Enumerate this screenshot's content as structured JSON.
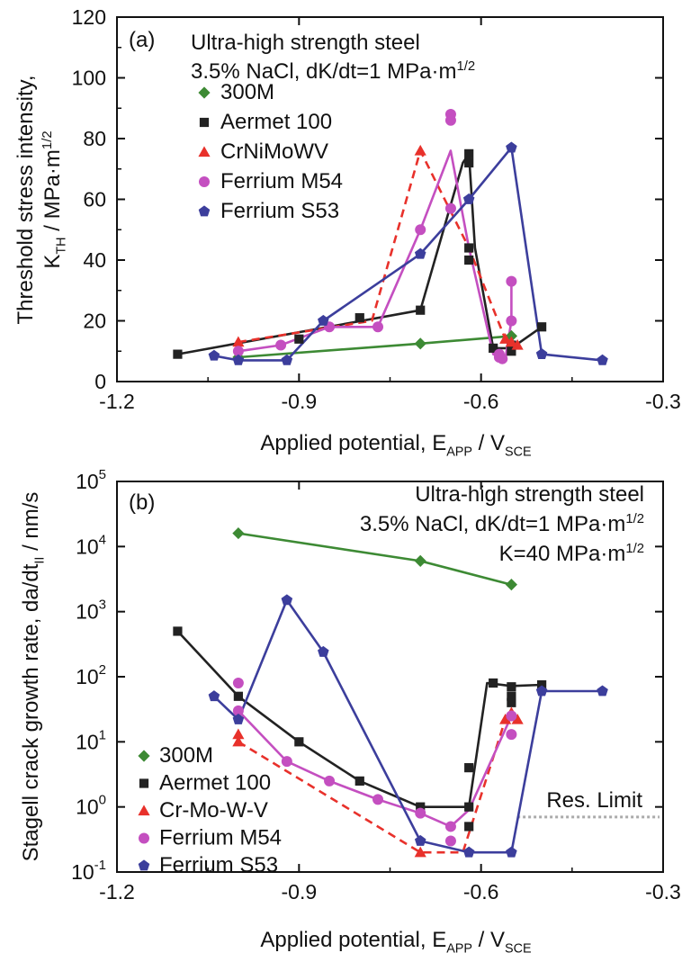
{
  "colors": {
    "300M": "#3d8a34",
    "Aermet 100": "#222222",
    "CrNiMoWV": "#e8312b",
    "Ferrium M54": "#c44fc0",
    "Ferrium S53": "#3c3e9c",
    "res_limit": "#aaaaaa"
  },
  "chart_data": [
    {
      "id": "a",
      "type": "line",
      "panel_label": "(a)",
      "annotation_lines": [
        "Ultra-high strength steel",
        "3.5% NaCl, dK/dt=1 MPa·m^1/2"
      ],
      "xlabel": "Applied potential, E_APP / V_SCE",
      "ylabel_line1": "Threshold stress intensity,",
      "ylabel_line2": "K_TH / MPa·m^1/2",
      "xlim": [
        -1.2,
        -0.3
      ],
      "ylim": [
        0,
        120
      ],
      "xticks": [
        "-1.2",
        "-0.9",
        "-0.6",
        "-0.3"
      ],
      "yticks": [
        "0",
        "20",
        "40",
        "60",
        "80",
        "100",
        "120"
      ],
      "legend": [
        {
          "name": "300M",
          "marker": "diamond"
        },
        {
          "name": "Aermet 100",
          "marker": "square"
        },
        {
          "name": "CrNiMoWV",
          "marker": "triangle"
        },
        {
          "name": "Ferrium M54",
          "marker": "circle"
        },
        {
          "name": "Ferrium S53",
          "marker": "pentagon"
        }
      ],
      "series": [
        {
          "name": "300M",
          "marker": "diamond",
          "dashed": false,
          "points": [
            [
              -1.0,
              8
            ],
            [
              -0.7,
              12.5
            ],
            [
              -0.55,
              15
            ]
          ],
          "line": [
            [
              -1.0,
              8
            ],
            [
              -0.7,
              12.5
            ],
            [
              -0.55,
              15
            ]
          ]
        },
        {
          "name": "Aermet 100",
          "marker": "square",
          "dashed": false,
          "points": [
            [
              -1.1,
              9
            ],
            [
              -0.9,
              14
            ],
            [
              -0.8,
              21
            ],
            [
              -0.7,
              23.5
            ],
            [
              -0.62,
              75
            ],
            [
              -0.62,
              72
            ],
            [
              -0.62,
              44
            ],
            [
              -0.62,
              40
            ],
            [
              -0.58,
              11
            ],
            [
              -0.55,
              10
            ],
            [
              -0.55,
              12
            ],
            [
              -0.5,
              18
            ]
          ],
          "line": [
            [
              -1.1,
              9
            ],
            [
              -0.7,
              23.5
            ],
            [
              -0.63,
              72
            ],
            [
              -0.62,
              75
            ],
            [
              -0.61,
              44
            ],
            [
              -0.58,
              11
            ],
            [
              -0.55,
              11
            ],
            [
              -0.5,
              18
            ]
          ]
        },
        {
          "name": "CrNiMoWV",
          "marker": "triangle",
          "dashed": true,
          "points": [
            [
              -1.0,
              13
            ],
            [
              -0.7,
              76
            ],
            [
              -0.56,
              14
            ],
            [
              -0.55,
              13
            ],
            [
              -0.54,
              12
            ]
          ],
          "line": [
            [
              -1.0,
              13
            ],
            [
              -0.78,
              20
            ],
            [
              -0.7,
              76
            ],
            [
              -0.62,
              44
            ],
            [
              -0.56,
              14
            ],
            [
              -0.54,
              12
            ]
          ]
        },
        {
          "name": "Ferrium M54",
          "marker": "circle",
          "dashed": false,
          "points": [
            [
              -1.0,
              10
            ],
            [
              -0.93,
              12
            ],
            [
              -0.85,
              18
            ],
            [
              -0.77,
              18
            ],
            [
              -0.7,
              50
            ],
            [
              -0.65,
              88
            ],
            [
              -0.65,
              86
            ],
            [
              -0.65,
              57
            ],
            [
              -0.57,
              9
            ],
            [
              -0.57,
              8
            ],
            [
              -0.565,
              7.5
            ],
            [
              -0.55,
              20
            ],
            [
              -0.55,
              33
            ]
          ],
          "line": [
            [
              -1.0,
              10
            ],
            [
              -0.93,
              12
            ],
            [
              -0.85,
              18
            ],
            [
              -0.77,
              18
            ],
            [
              -0.7,
              50
            ],
            [
              -0.65,
              76
            ],
            [
              -0.62,
              44
            ],
            [
              -0.58,
              9
            ],
            [
              -0.56,
              7.5
            ],
            [
              -0.55,
              20
            ],
            [
              -0.55,
              33
            ]
          ]
        },
        {
          "name": "Ferrium S53",
          "marker": "pentagon",
          "dashed": false,
          "points": [
            [
              -1.04,
              8.5
            ],
            [
              -1.0,
              7
            ],
            [
              -0.92,
              7
            ],
            [
              -0.86,
              20
            ],
            [
              -0.7,
              42
            ],
            [
              -0.62,
              60
            ],
            [
              -0.55,
              77
            ],
            [
              -0.5,
              9
            ],
            [
              -0.4,
              7
            ]
          ],
          "line": [
            [
              -1.04,
              8.5
            ],
            [
              -1.0,
              7
            ],
            [
              -0.92,
              7
            ],
            [
              -0.86,
              20
            ],
            [
              -0.7,
              42
            ],
            [
              -0.62,
              60
            ],
            [
              -0.55,
              77
            ],
            [
              -0.5,
              9
            ],
            [
              -0.4,
              7
            ]
          ]
        }
      ]
    },
    {
      "id": "b",
      "type": "line",
      "panel_label": "(b)",
      "annotation_lines": [
        "Ultra-high strength steel",
        "3.5% NaCl, dK/dt=1 MPa·m^1/2",
        "K=40 MPa·m^1/2"
      ],
      "xlabel": "Applied potential, E_APP / V_SCE",
      "ylabel": "Stagell crack growth rate, da/dt_II / nm/s",
      "yscale": "log",
      "xlim": [
        -1.2,
        -0.3
      ],
      "ylim": [
        0.1,
        100000
      ],
      "xticks": [
        "-1.2",
        "-0.9",
        "-0.6",
        "-0.3"
      ],
      "yticks": [
        "10^-1",
        "10^0",
        "10^1",
        "10^2",
        "10^3",
        "10^4",
        "10^5"
      ],
      "res_limit_label": "Res. Limit",
      "res_limit_value": 0.7,
      "res_limit_range": [
        -0.54,
        -0.3
      ],
      "legend": [
        {
          "name": "300M",
          "marker": "diamond"
        },
        {
          "name": "Aermet 100",
          "marker": "square"
        },
        {
          "name": "Cr-Mo-W-V",
          "marker": "triangle"
        },
        {
          "name": "Ferrium M54",
          "marker": "circle"
        },
        {
          "name": "Ferrium S53",
          "marker": "pentagon"
        }
      ],
      "series": [
        {
          "name": "300M",
          "marker": "diamond",
          "dashed": false,
          "points": [
            [
              -1.0,
              16000
            ],
            [
              -0.7,
              6000
            ],
            [
              -0.55,
              2600
            ]
          ],
          "line": [
            [
              -1.0,
              16000
            ],
            [
              -0.7,
              6000
            ],
            [
              -0.55,
              2600
            ]
          ]
        },
        {
          "name": "Aermet 100",
          "marker": "square",
          "dashed": false,
          "points": [
            [
              -1.1,
              500
            ],
            [
              -1.0,
              50
            ],
            [
              -0.9,
              10
            ],
            [
              -0.8,
              2.5
            ],
            [
              -0.7,
              1.0
            ],
            [
              -0.62,
              1.0
            ],
            [
              -0.62,
              0.5
            ],
            [
              -0.62,
              4
            ],
            [
              -0.58,
              80
            ],
            [
              -0.55,
              70
            ],
            [
              -0.55,
              50
            ],
            [
              -0.55,
              40
            ],
            [
              -0.5,
              75
            ]
          ],
          "line": [
            [
              -1.1,
              500
            ],
            [
              -1.0,
              50
            ],
            [
              -0.9,
              10
            ],
            [
              -0.8,
              2.5
            ],
            [
              -0.7,
              1.0
            ],
            [
              -0.62,
              1.0
            ],
            [
              -0.59,
              80
            ],
            [
              -0.55,
              72
            ],
            [
              -0.5,
              75
            ]
          ]
        },
        {
          "name": "CrNiMoWV",
          "marker": "triangle",
          "dashed": true,
          "points": [
            [
              -1.0,
              13
            ],
            [
              -1.0,
              10
            ],
            [
              -0.7,
              0.2
            ],
            [
              -0.56,
              22
            ],
            [
              -0.55,
              28
            ],
            [
              -0.54,
              22
            ]
          ],
          "line": [
            [
              -1.0,
              10
            ],
            [
              -0.7,
              0.2
            ],
            [
              -0.63,
              0.2
            ],
            [
              -0.56,
              22
            ],
            [
              -0.55,
              28
            ]
          ]
        },
        {
          "name": "Ferrium M54",
          "marker": "circle",
          "dashed": false,
          "points": [
            [
              -1.0,
              80
            ],
            [
              -1.0,
              30
            ],
            [
              -0.92,
              5
            ],
            [
              -0.85,
              2.5
            ],
            [
              -0.77,
              1.3
            ],
            [
              -0.7,
              0.8
            ],
            [
              -0.65,
              0.5
            ],
            [
              -0.65,
              0.3
            ],
            [
              -0.55,
              13
            ],
            [
              -0.55,
              25
            ]
          ],
          "line": [
            [
              -1.0,
              30
            ],
            [
              -0.92,
              5
            ],
            [
              -0.85,
              2.5
            ],
            [
              -0.77,
              1.3
            ],
            [
              -0.7,
              0.8
            ],
            [
              -0.65,
              0.5
            ],
            [
              -0.62,
              0.9
            ],
            [
              -0.55,
              25
            ]
          ]
        },
        {
          "name": "Ferrium S53",
          "marker": "pentagon",
          "dashed": false,
          "points": [
            [
              -1.04,
              50
            ],
            [
              -1.0,
              22
            ],
            [
              -0.92,
              1500
            ],
            [
              -0.86,
              240
            ],
            [
              -0.7,
              0.3
            ],
            [
              -0.62,
              0.2
            ],
            [
              -0.55,
              0.2
            ],
            [
              -0.5,
              60
            ],
            [
              -0.4,
              60
            ]
          ],
          "line": [
            [
              -1.04,
              50
            ],
            [
              -1.0,
              22
            ],
            [
              -0.92,
              1500
            ],
            [
              -0.86,
              240
            ],
            [
              -0.7,
              0.3
            ],
            [
              -0.62,
              0.2
            ],
            [
              -0.55,
              0.2
            ],
            [
              -0.5,
              60
            ],
            [
              -0.4,
              60
            ]
          ]
        }
      ]
    }
  ]
}
